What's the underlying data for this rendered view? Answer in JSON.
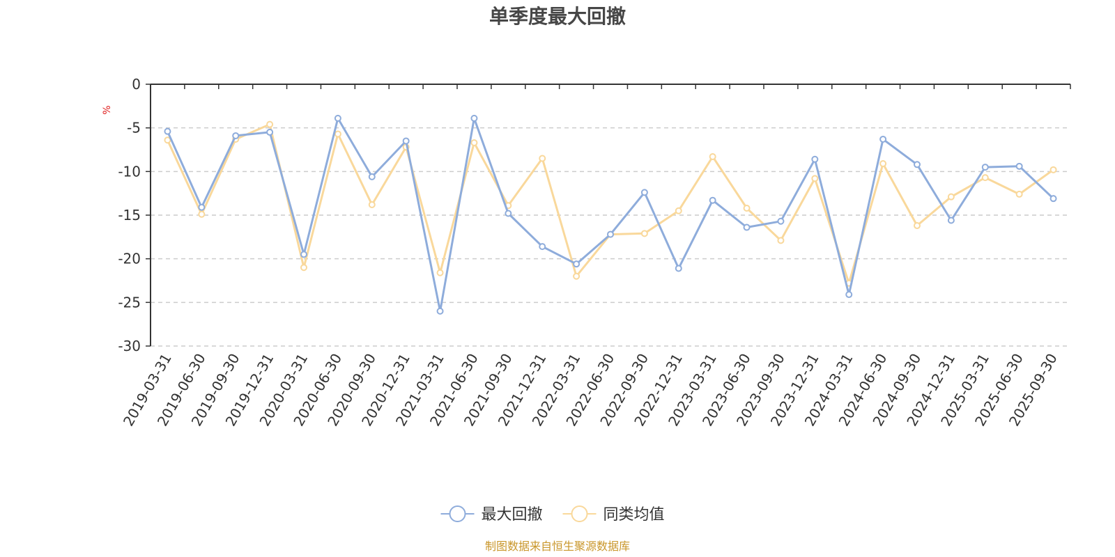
{
  "chart_data": {
    "type": "line",
    "title": "单季度最大回撤",
    "ylabel": "%",
    "ylim": [
      -30,
      0
    ],
    "yticks": [
      0,
      -5,
      -10,
      -15,
      -20,
      -25,
      -30
    ],
    "grid": true,
    "legend_position": "bottom-center",
    "categories": [
      "2019-03-31",
      "2019-06-30",
      "2019-09-30",
      "2019-12-31",
      "2020-03-31",
      "2020-06-30",
      "2020-09-30",
      "2020-12-31",
      "2021-03-31",
      "2021-06-30",
      "2021-09-30",
      "2021-12-31",
      "2022-03-31",
      "2022-06-30",
      "2022-09-30",
      "2022-12-31",
      "2023-03-31",
      "2023-06-30",
      "2023-09-30",
      "2023-12-31",
      "2024-03-31",
      "2024-06-30",
      "2024-09-30",
      "2024-12-31",
      "2025-03-31",
      "2025-06-30",
      "2025-09-30"
    ],
    "series": [
      {
        "name": "最大回撤",
        "color": "#8eacdb",
        "values": [
          -5.4,
          -14.1,
          -5.9,
          -5.5,
          -19.5,
          -3.9,
          -10.6,
          -6.5,
          -26.0,
          -3.9,
          -14.8,
          -18.6,
          -20.6,
          -17.2,
          -12.4,
          -21.1,
          -13.3,
          -16.4,
          -15.7,
          -8.6,
          -24.1,
          -6.3,
          -9.2,
          -15.6,
          -9.5,
          -9.4,
          -13.1
        ]
      },
      {
        "name": "同类均值",
        "color": "#f9d89b",
        "values": [
          -6.4,
          -14.9,
          -6.3,
          -4.6,
          -21.0,
          -5.7,
          -13.8,
          -7.2,
          -21.6,
          -6.7,
          -13.9,
          -8.5,
          -22.0,
          -17.2,
          -17.1,
          -14.5,
          -8.3,
          -14.2,
          -17.9,
          -10.8,
          -22.8,
          -9.1,
          -16.2,
          -12.9,
          -10.7,
          -12.6,
          -9.8
        ]
      }
    ],
    "source_note": "制图数据来自恒生聚源数据库"
  }
}
